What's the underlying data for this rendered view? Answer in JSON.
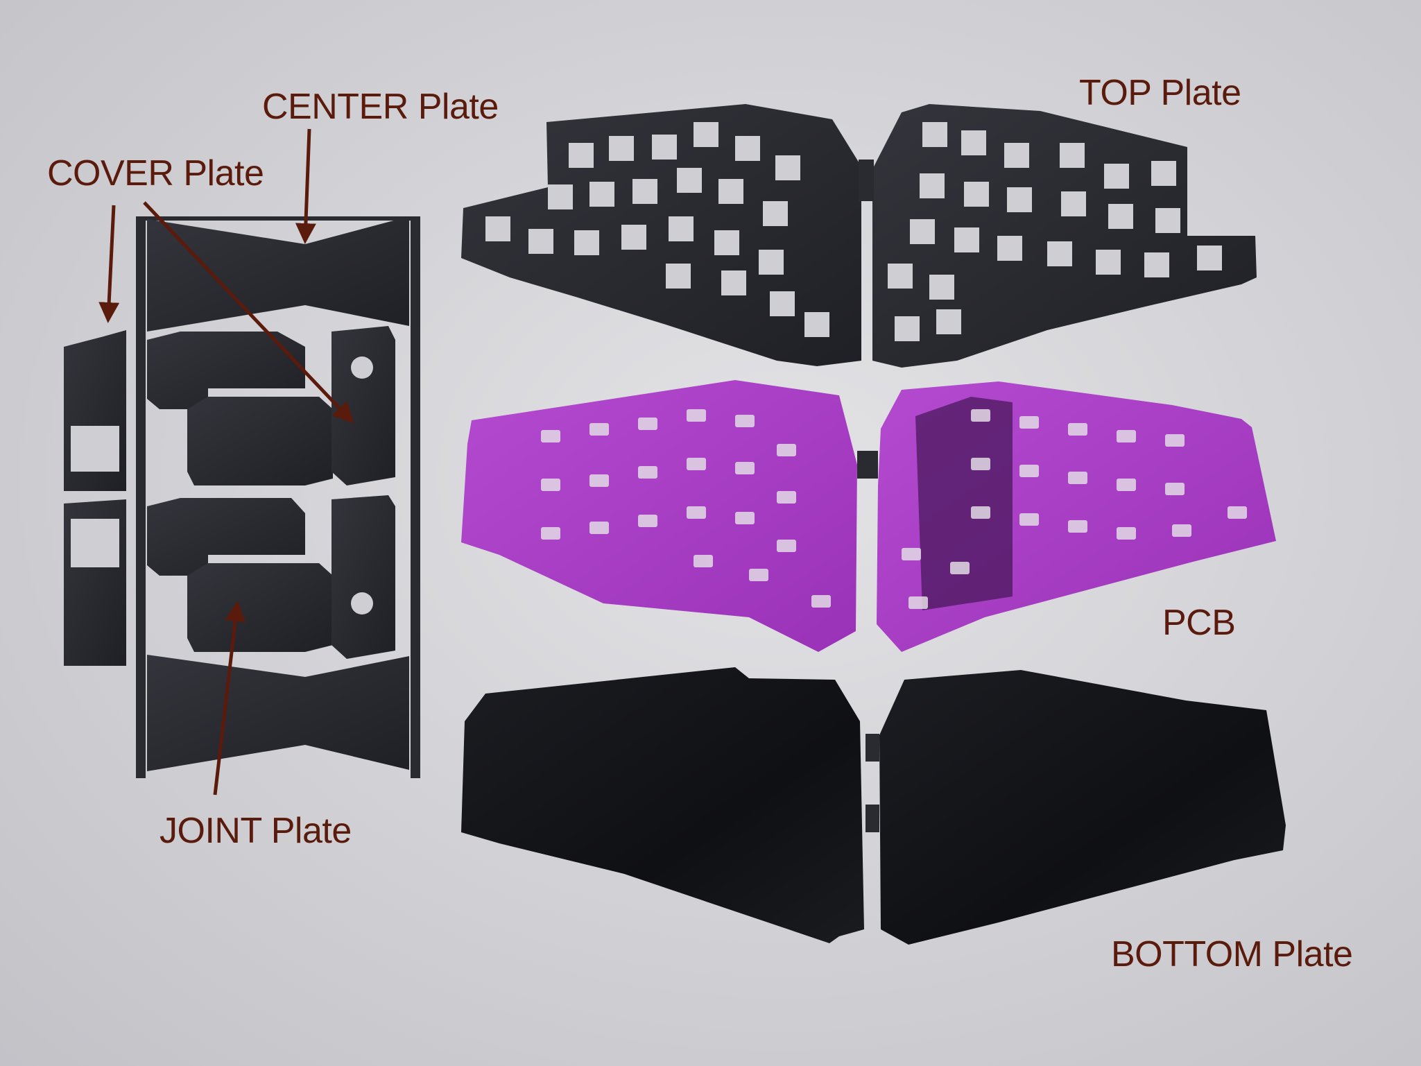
{
  "labels": {
    "center_plate": "CENTER Plate",
    "cover_plate": "COVER Plate",
    "top_plate": "TOP Plate",
    "pcb": "PCB",
    "joint_plate": "JOINT Plate",
    "bottom_plate": "BOTTOM Plate"
  },
  "colors": {
    "label_text": "#5a1a0c",
    "arrow": "#5a1a0c",
    "plate": "#26272d",
    "pcb": "#a43bc0"
  }
}
